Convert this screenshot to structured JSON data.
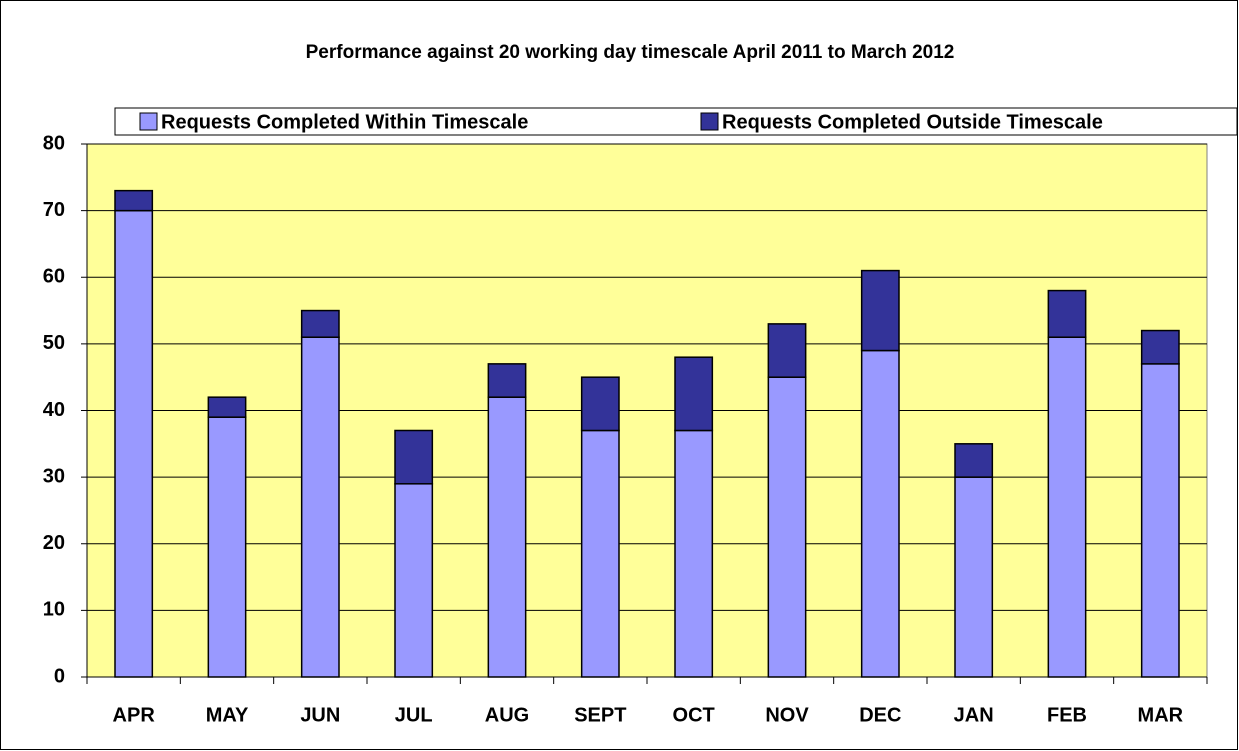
{
  "chart_data": {
    "type": "stacked_bar",
    "title": "Performance against 20 working day timescale April 2011 to March 2012",
    "categories": [
      "APR",
      "MAY",
      "JUN",
      "JUL",
      "AUG",
      "SEPT",
      "OCT",
      "NOV",
      "DEC",
      "JAN",
      "FEB",
      "MAR"
    ],
    "series": [
      {
        "name": "Requests Completed Within Timescale",
        "color": "#9999ff",
        "values": [
          70,
          39,
          51,
          29,
          42,
          37,
          37,
          45,
          49,
          30,
          51,
          47
        ]
      },
      {
        "name": "Requests Completed Outside Timescale",
        "color": "#333399",
        "values": [
          3,
          3,
          4,
          8,
          5,
          8,
          11,
          8,
          12,
          5,
          7,
          5
        ]
      }
    ],
    "ylim": [
      0,
      80
    ],
    "yticks": [
      0,
      10,
      20,
      30,
      40,
      50,
      60,
      70,
      80
    ],
    "grid": true,
    "plot_background": "#ffff99",
    "legend": "top"
  }
}
